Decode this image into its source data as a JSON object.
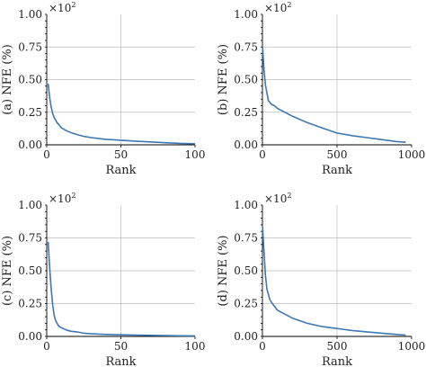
{
  "chart_data": [
    {
      "type": "line",
      "ylabel": "(a) NFE (%)",
      "xlabel": "Rank",
      "scale_multiplier": "×10",
      "scale_exponent": "2",
      "xlim": [
        0,
        100
      ],
      "ylim": [
        0,
        1.0
      ],
      "xticks": [
        "0",
        "50",
        "100"
      ],
      "yticks": [
        "0.00",
        "0.25",
        "0.50",
        "0.75",
        "1.00"
      ],
      "line_color": "#3c78b4",
      "x": [
        1,
        2,
        3,
        4,
        5,
        7,
        10,
        13,
        16,
        20,
        25,
        30,
        40,
        50,
        60,
        70,
        80,
        90,
        100
      ],
      "y": [
        0.47,
        0.36,
        0.29,
        0.24,
        0.21,
        0.17,
        0.13,
        0.11,
        0.095,
        0.08,
        0.065,
        0.055,
        0.042,
        0.035,
        0.028,
        0.022,
        0.016,
        0.011,
        0.008
      ]
    },
    {
      "type": "line",
      "ylabel": "(b) NFE (%)",
      "xlabel": "Rank",
      "scale_multiplier": "×10",
      "scale_exponent": "2",
      "xlim": [
        0,
        1000
      ],
      "ylim": [
        0,
        1.0
      ],
      "xticks": [
        "0",
        "500",
        "1000"
      ],
      "yticks": [
        "0.00",
        "0.25",
        "0.50",
        "0.75",
        "1.00"
      ],
      "line_color": "#3c78b4",
      "x": [
        1,
        10,
        20,
        40,
        60,
        80,
        100,
        150,
        200,
        300,
        400,
        500,
        600,
        700,
        800,
        900,
        960
      ],
      "y": [
        0.75,
        0.58,
        0.46,
        0.34,
        0.31,
        0.3,
        0.28,
        0.25,
        0.22,
        0.17,
        0.13,
        0.09,
        0.07,
        0.055,
        0.04,
        0.025,
        0.02
      ]
    },
    {
      "type": "line",
      "ylabel": "(c) NFE (%)",
      "xlabel": "Rank",
      "scale_multiplier": "×10",
      "scale_exponent": "2",
      "xlim": [
        0,
        100
      ],
      "ylim": [
        0,
        1.0
      ],
      "xticks": [
        "0",
        "50",
        "100"
      ],
      "yticks": [
        "0.00",
        "0.25",
        "0.50",
        "0.75",
        "1.00"
      ],
      "line_color": "#3c78b4",
      "x": [
        1,
        2,
        3,
        4,
        5,
        6,
        8,
        10,
        13,
        16,
        20,
        25,
        30,
        40,
        50,
        60,
        70,
        80,
        90,
        100
      ],
      "y": [
        0.72,
        0.52,
        0.36,
        0.24,
        0.16,
        0.12,
        0.08,
        0.065,
        0.05,
        0.04,
        0.035,
        0.025,
        0.02,
        0.015,
        0.012,
        0.01,
        0.008,
        0.006,
        0.005,
        0.004
      ]
    },
    {
      "type": "line",
      "ylabel": "(d) NFE (%)",
      "xlabel": "Rank",
      "scale_multiplier": "×10",
      "scale_exponent": "2",
      "xlim": [
        0,
        1000
      ],
      "ylim": [
        0,
        1.0
      ],
      "xticks": [
        "0",
        "500",
        "1000"
      ],
      "yticks": [
        "0.00",
        "0.25",
        "0.50",
        "0.75",
        "1.00"
      ],
      "line_color": "#3c78b4",
      "x": [
        1,
        10,
        20,
        30,
        50,
        60,
        80,
        100,
        150,
        200,
        300,
        400,
        500,
        600,
        700,
        800,
        900,
        960
      ],
      "y": [
        0.83,
        0.65,
        0.47,
        0.36,
        0.28,
        0.26,
        0.23,
        0.2,
        0.17,
        0.14,
        0.1,
        0.075,
        0.06,
        0.045,
        0.035,
        0.025,
        0.015,
        0.01
      ]
    }
  ]
}
